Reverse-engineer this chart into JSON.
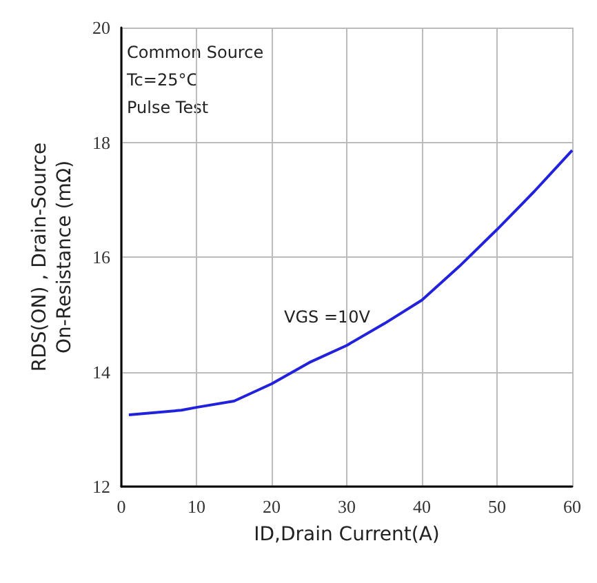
{
  "chart_data": {
    "type": "line",
    "xlabel": "ID,Drain Current(A)",
    "ylabel": "RDS(ON) , Drain-Source\nOn-Resistance (mΩ)",
    "x": [
      1,
      8,
      10,
      15,
      20,
      25,
      30,
      35,
      40,
      45,
      50,
      55,
      60
    ],
    "series": [
      {
        "color": "#2222dd",
        "values": [
          13.25,
          13.33,
          13.38,
          13.49,
          13.79,
          14.16,
          14.46,
          14.84,
          15.25,
          15.84,
          16.48,
          17.15,
          17.86
        ]
      }
    ],
    "xlim": [
      0,
      60
    ],
    "xticks": [
      0,
      10,
      20,
      30,
      40,
      50,
      60
    ],
    "ylim": [
      12,
      20
    ],
    "yticks": [
      12,
      14,
      16,
      18,
      20
    ],
    "grid": true,
    "marker": "none",
    "line_style": "solid",
    "annotations": [
      "Common Source\nTc=25°C\nPulse Test",
      "VGS =10V"
    ]
  }
}
